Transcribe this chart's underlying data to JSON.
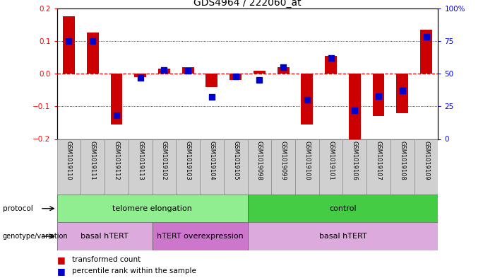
{
  "title": "GDS4964 / 222060_at",
  "samples": [
    "GSM1019110",
    "GSM1019111",
    "GSM1019112",
    "GSM1019113",
    "GSM1019102",
    "GSM1019103",
    "GSM1019104",
    "GSM1019105",
    "GSM1019098",
    "GSM1019099",
    "GSM1019100",
    "GSM1019101",
    "GSM1019106",
    "GSM1019107",
    "GSM1019108",
    "GSM1019109"
  ],
  "transformed_count": [
    0.175,
    0.125,
    -0.155,
    -0.01,
    0.015,
    0.02,
    -0.04,
    -0.02,
    0.01,
    0.02,
    -0.155,
    0.055,
    -0.21,
    -0.13,
    -0.12,
    0.135
  ],
  "percentile_rank": [
    75,
    75,
    18,
    47,
    53,
    52,
    32,
    48,
    45,
    55,
    30,
    62,
    22,
    33,
    37,
    78
  ],
  "ylim_left": [
    -0.2,
    0.2
  ],
  "ylim_right": [
    0,
    100
  ],
  "yticks_left": [
    -0.2,
    -0.1,
    0,
    0.1,
    0.2
  ],
  "yticks_right": [
    0,
    25,
    50,
    75,
    100
  ],
  "bar_color": "#cc0000",
  "dot_color": "#0000cc",
  "zero_line_color": "#cc0000",
  "grid_color": "#000000",
  "protocol_groups": [
    {
      "label": "telomere elongation",
      "start": 0,
      "end": 8,
      "color": "#90ee90"
    },
    {
      "label": "control",
      "start": 8,
      "end": 16,
      "color": "#44cc44"
    }
  ],
  "genotype_groups": [
    {
      "label": "basal hTERT",
      "start": 0,
      "end": 4,
      "color": "#ddaadd"
    },
    {
      "label": "hTERT overexpression",
      "start": 4,
      "end": 8,
      "color": "#cc77cc"
    },
    {
      "label": "basal hTERT",
      "start": 8,
      "end": 16,
      "color": "#ddaadd"
    }
  ],
  "legend_items": [
    {
      "label": "transformed count",
      "color": "#cc0000"
    },
    {
      "label": "percentile rank within the sample",
      "color": "#0000cc"
    }
  ],
  "bg_color": "#ffffff",
  "cell_bg": "#d0d0d0"
}
